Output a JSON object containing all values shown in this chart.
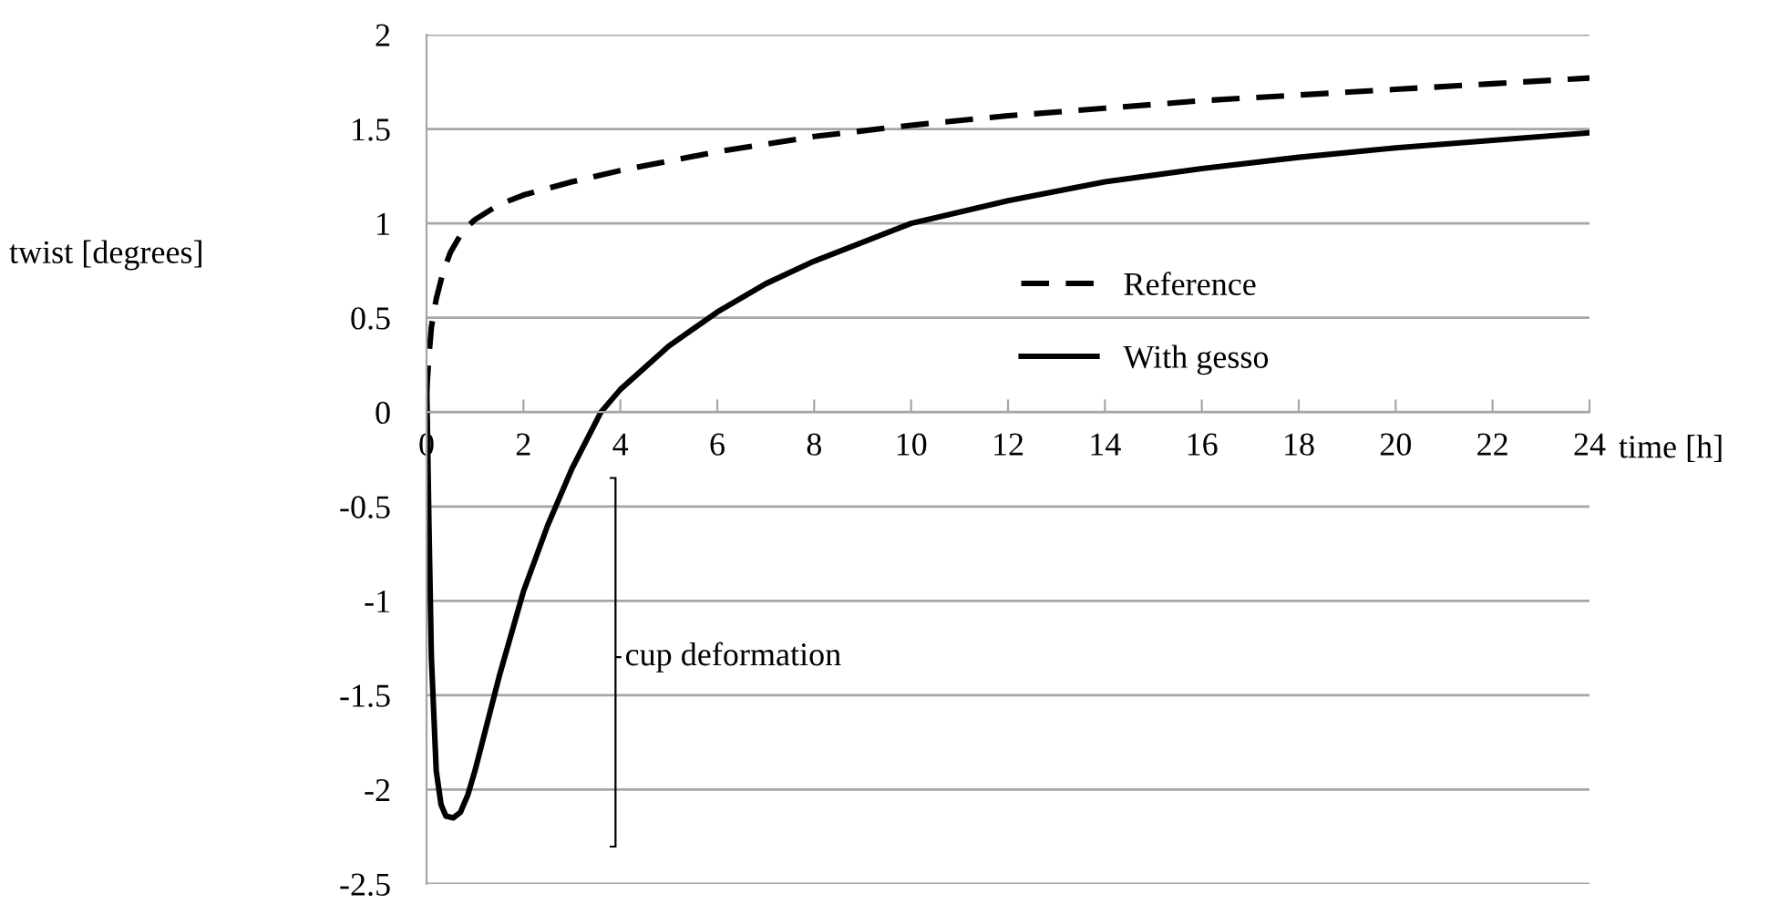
{
  "chart_data": {
    "type": "line",
    "xlabel": "time [h]",
    "ylabel": "twist [degrees]",
    "xlim": [
      0,
      24
    ],
    "xticks": [
      0,
      2,
      4,
      6,
      8,
      10,
      12,
      14,
      16,
      18,
      20,
      22,
      24
    ],
    "ylim": [
      -2.5,
      2
    ],
    "yticks": [
      -2.5,
      -2,
      -1.5,
      -1,
      -0.5,
      0,
      0.5,
      1,
      1.5,
      2
    ],
    "grid": "y",
    "legend": "right",
    "annotations": [
      "cup deformation"
    ],
    "series": [
      {
        "name": "Reference",
        "color": "#000000",
        "line_style": "dashed",
        "x": [
          0,
          0.05,
          0.1,
          0.2,
          0.35,
          0.5,
          0.75,
          1,
          1.5,
          2,
          3,
          4,
          5,
          6,
          7,
          8,
          10,
          12,
          14,
          16,
          18,
          20,
          22,
          24
        ],
        "values": [
          0.1,
          0.3,
          0.45,
          0.6,
          0.75,
          0.85,
          0.96,
          1.02,
          1.1,
          1.15,
          1.22,
          1.28,
          1.33,
          1.38,
          1.42,
          1.46,
          1.52,
          1.57,
          1.61,
          1.65,
          1.68,
          1.71,
          1.74,
          1.77
        ]
      },
      {
        "name": "With gesso",
        "color": "#000000",
        "line_style": "solid",
        "x": [
          0,
          0.05,
          0.1,
          0.2,
          0.3,
          0.4,
          0.55,
          0.7,
          0.85,
          1,
          1.25,
          1.5,
          2,
          2.5,
          3,
          3.6,
          4,
          5,
          6,
          7,
          8,
          10,
          12,
          14,
          16,
          18,
          20,
          22,
          24
        ],
        "values": [
          0.2,
          -0.6,
          -1.3,
          -1.9,
          -2.08,
          -2.14,
          -2.15,
          -2.12,
          -2.03,
          -1.9,
          -1.65,
          -1.4,
          -0.95,
          -0.6,
          -0.3,
          0,
          0.12,
          0.35,
          0.53,
          0.68,
          0.8,
          1.0,
          1.12,
          1.22,
          1.29,
          1.35,
          1.4,
          1.44,
          1.48
        ]
      }
    ]
  }
}
